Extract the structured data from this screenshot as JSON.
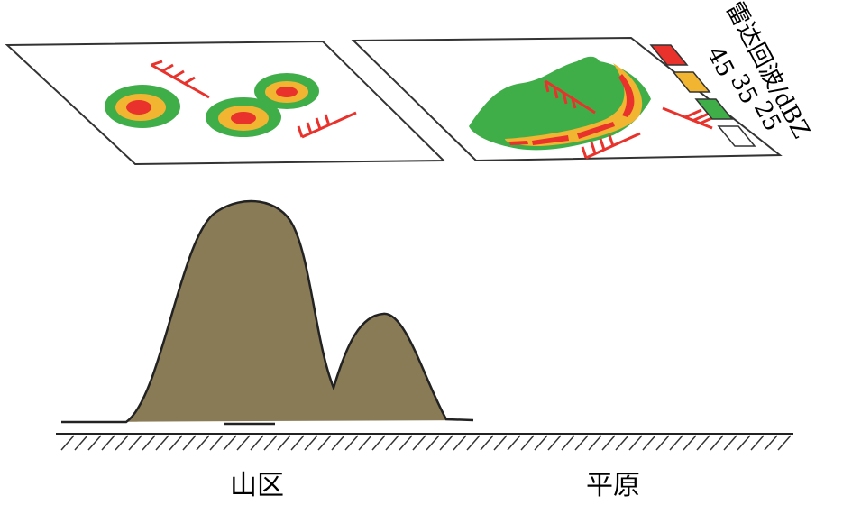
{
  "labels": {
    "mountain": "山区",
    "plain": "平原"
  },
  "legend": {
    "title": "雷达回波/dBZ",
    "items": [
      {
        "label": "45",
        "color": "#e8322b"
      },
      {
        "label": "35",
        "color": "#f2b531"
      },
      {
        "label": "25",
        "color": "#3fae49"
      },
      {
        "label": "",
        "color": "#ffffff"
      }
    ]
  }
}
